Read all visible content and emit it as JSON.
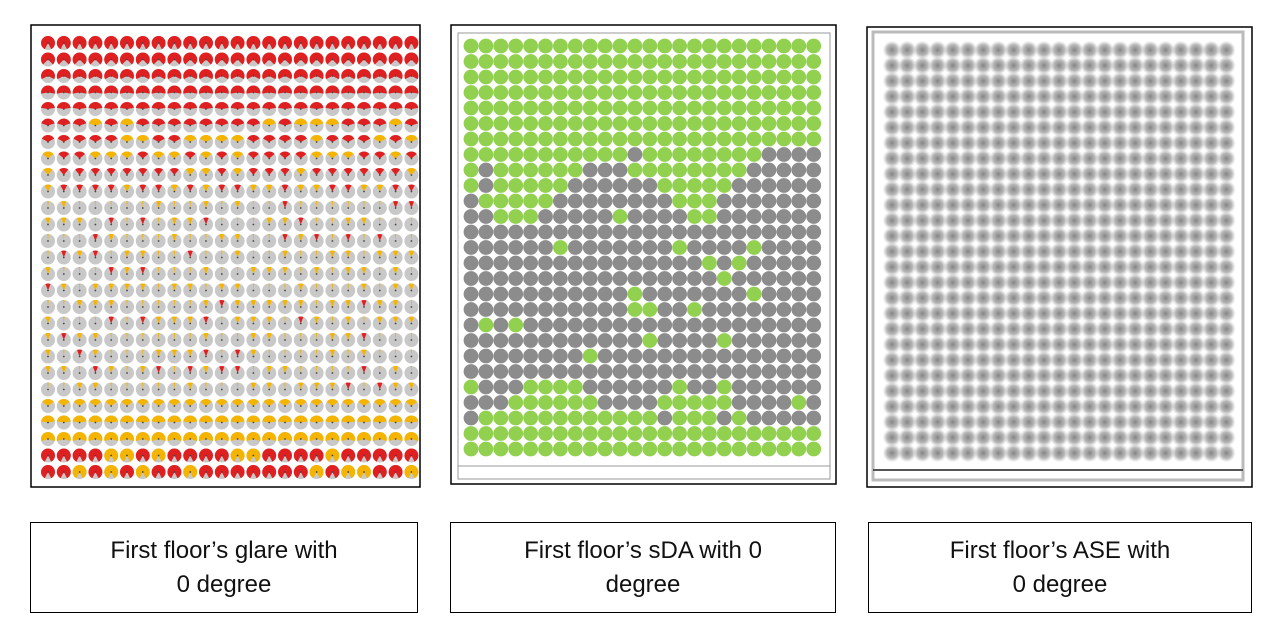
{
  "captions": [
    "First floor’s glare with 0 degree",
    "First floor’s sDA with 0 degree",
    "First floor’s ASE with 0 degree"
  ]
}
